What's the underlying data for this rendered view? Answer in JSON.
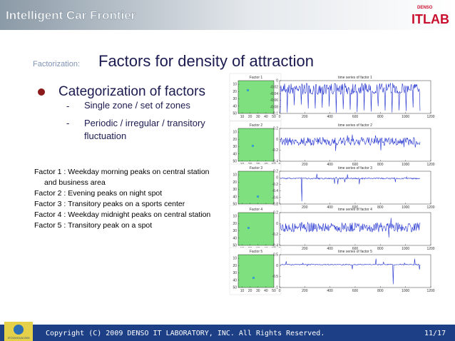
{
  "header": {
    "title": "Intelligent Car Frontier",
    "logo_brand": "DENSO",
    "logo": "ITLAB"
  },
  "slide": {
    "label": "Factorization:",
    "title": "Factors for density of attraction",
    "bullet": "Categorization of factors",
    "sub_bullets": [
      "Single zone / set of zones",
      "Periodic / irregular / transitory fluctuation"
    ],
    "factors": [
      "Factor 1 : Weekday morning peaks on central station and business area",
      "Factor 2 : Evening peaks on night spot",
      "Factor 3 : Transitory peaks on a sports center",
      "Factor 4 : Weekday midnight peaks on central station",
      "Factor 5 : Transitory peak on a spot"
    ]
  },
  "panels": [
    {
      "map_title": "Factor 1",
      "series_title": "time series of factor 1",
      "yticks": [
        0,
        -0.02,
        -0.04,
        -0.06,
        -0.08,
        -0.1
      ]
    },
    {
      "map_title": "Factor 2",
      "series_title": "time series of factor 2",
      "yticks": [
        0.2,
        0,
        -0.2,
        -0.4
      ]
    },
    {
      "map_title": "Factor 3",
      "series_title": "time series of factor 3",
      "yticks": [
        0.2,
        0,
        -0.2,
        -0.4,
        -0.6,
        -0.8
      ]
    },
    {
      "map_title": "Factor 4",
      "series_title": "time series of factor 4",
      "yticks": [
        0.2,
        0,
        -0.2,
        -0.4
      ]
    },
    {
      "map_title": "Factor 5",
      "series_title": "time series of factor 5",
      "yticks": [
        0.5,
        0,
        -0.5,
        -1
      ]
    }
  ],
  "map_ticks": [
    10,
    20,
    30,
    40,
    50
  ],
  "series_xticks": [
    0,
    200,
    400,
    600,
    800,
    1000,
    1200
  ],
  "footer": {
    "badge": "STOCKHOLM 2009",
    "copyright": "Copyright (C) 2009 DENSO IT LABORATORY, INC. All Rights Reserved.",
    "page": "11/17"
  }
}
